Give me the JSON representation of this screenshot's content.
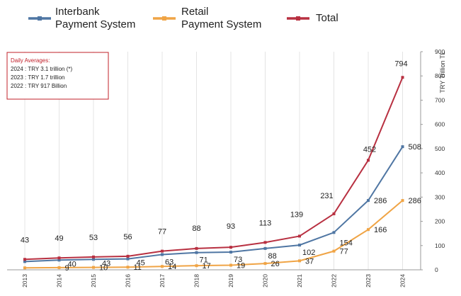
{
  "chart_data": {
    "type": "line",
    "x": [
      "2013",
      "2014",
      "2015",
      "2016",
      "2017",
      "2018",
      "2019",
      "2020",
      "2021",
      "2022",
      "2023",
      "2024"
    ],
    "series": [
      {
        "name": "Interbank\nPayment System",
        "color": "#4f76a3",
        "values": [
          34,
          40,
          43,
          45,
          63,
          71,
          73,
          88,
          102,
          154,
          286,
          508
        ],
        "labels": [
          "",
          "40",
          "43",
          "45",
          "63",
          "71",
          "73",
          "88",
          "102",
          "154",
          "286",
          "508"
        ]
      },
      {
        "name": "Retail\nPayment System",
        "color": "#f0a445",
        "values": [
          8,
          9,
          10,
          11,
          14,
          17,
          19,
          26,
          37,
          77,
          166,
          286
        ],
        "labels": [
          "",
          "9",
          "10",
          "11",
          "14",
          "17",
          "19",
          "26",
          "37",
          "77",
          "166",
          "286"
        ]
      },
      {
        "name": "Total",
        "color": "#b83041",
        "values": [
          43,
          49,
          53,
          56,
          77,
          88,
          93,
          113,
          139,
          231,
          452,
          794
        ],
        "labels": [
          "43",
          "49",
          "53",
          "56",
          "77",
          "88",
          "93",
          "113",
          "139",
          "231",
          "452",
          "794"
        ]
      }
    ],
    "ylabel": "TRY Trillion TL",
    "ylim": [
      0,
      900
    ],
    "yticks": [
      "0",
      "100",
      "200",
      "300",
      "400",
      "500",
      "600",
      "700",
      "800",
      "900"
    ],
    "y_axis_side": "right",
    "grid": "vertical",
    "legend_position": "top",
    "annotation": {
      "title": "Daily Averages:",
      "lines": [
        "2024 : TRY  3.1 trillion (*)",
        "2023 : TRY  1.7 trillion",
        "2022 : TRY  917 Billion"
      ]
    }
  }
}
